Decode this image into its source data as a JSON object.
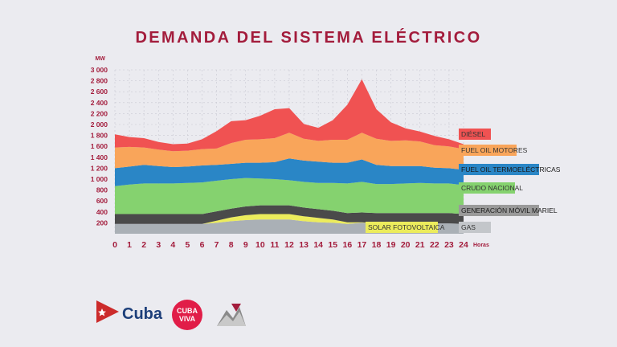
{
  "title": "DEMANDA DEL SISTEMA ELÉCTRICO",
  "colors": {
    "title": "#a31c3c",
    "axis": "#a31c3c",
    "diesel": "#f05252",
    "fuel_oil_motores": "#f9a55a",
    "fuel_oil_termo": "#2a86c6",
    "crudo_nacional": "#85d26f",
    "generacion_movil": "#4a4a4a",
    "gas": "#aab0b6",
    "solar": "#ecec5c"
  },
  "chart_data": {
    "type": "area",
    "title": "DEMANDA DEL SISTEMA ELÉCTRICO",
    "ylabel": "MW",
    "xlabel": "Horas",
    "ylim": [
      0,
      3000
    ],
    "yticks": [
      "3 000",
      "2 800",
      "2 600",
      "2 400",
      "2 200",
      "2 000",
      "1 800",
      "1 600",
      "1 400",
      "1 200",
      "1 000",
      "800",
      "600",
      "400",
      "200"
    ],
    "ytick_values": [
      3000,
      2800,
      2600,
      2400,
      2200,
      2000,
      1800,
      1600,
      1400,
      1200,
      1000,
      800,
      600,
      400,
      200
    ],
    "x": [
      0,
      1,
      2,
      3,
      4,
      5,
      6,
      7,
      8,
      9,
      10,
      11,
      12,
      13,
      14,
      15,
      16,
      17,
      18,
      19,
      20,
      21,
      22,
      23,
      24
    ],
    "xticks": [
      "0",
      "1",
      "2",
      "3",
      "4",
      "5",
      "6",
      "7",
      "8",
      "9",
      "10",
      "11",
      "12",
      "13",
      "14",
      "15",
      "16",
      "17",
      "18",
      "19",
      "20",
      "21",
      "22",
      "23",
      "24"
    ],
    "grid": true,
    "stacked": true,
    "legend_placement": "right",
    "series": [
      {
        "name": "GAS",
        "key": "gas",
        "values": [
          180,
          180,
          180,
          180,
          180,
          180,
          180,
          200,
          230,
          250,
          260,
          260,
          260,
          230,
          210,
          200,
          180,
          200,
          190,
          190,
          190,
          190,
          190,
          190,
          180
        ]
      },
      {
        "name": "SOLAR FOTOVOLTAICA",
        "key": "solar",
        "values": [
          0,
          0,
          0,
          0,
          0,
          0,
          0,
          40,
          70,
          90,
          100,
          100,
          100,
          90,
          80,
          60,
          30,
          10,
          0,
          0,
          0,
          0,
          0,
          0,
          0
        ]
      },
      {
        "name": "GENERACIÓN MÓVIL MARIEL",
        "key": "generacion_movil",
        "values": [
          180,
          180,
          180,
          180,
          180,
          180,
          180,
          170,
          160,
          160,
          160,
          160,
          160,
          160,
          160,
          160,
          170,
          180,
          190,
          190,
          190,
          190,
          190,
          190,
          180
        ]
      },
      {
        "name": "CRUDO NACIONAL",
        "key": "crudo_nacional",
        "values": [
          510,
          540,
          560,
          560,
          560,
          570,
          580,
          560,
          540,
          520,
          490,
          480,
          460,
          470,
          480,
          510,
          540,
          560,
          530,
          530,
          540,
          550,
          540,
          540,
          530
        ]
      },
      {
        "name": "FUEL OIL TERMOELÉCTRICAS",
        "key": "fuel_oil_termo",
        "values": [
          330,
          330,
          340,
          320,
          300,
          300,
          310,
          290,
          280,
          280,
          290,
          310,
          400,
          390,
          390,
          370,
          380,
          410,
          350,
          330,
          320,
          310,
          290,
          280,
          280
        ]
      },
      {
        "name": "FUEL OIL MOTORES",
        "key": "fuel_oil_motores",
        "values": [
          380,
          360,
          320,
          300,
          290,
          290,
          300,
          300,
          380,
          420,
          430,
          440,
          470,
          400,
          380,
          420,
          420,
          490,
          480,
          460,
          470,
          450,
          410,
          400,
          380
        ]
      },
      {
        "name": "DIÉSEL",
        "key": "diesel",
        "values": [
          240,
          180,
          170,
          140,
          130,
          130,
          180,
          320,
          400,
          360,
          430,
          530,
          450,
          270,
          240,
          360,
          640,
          980,
          540,
          340,
          220,
          180,
          170,
          130,
          90
        ]
      }
    ]
  },
  "legend": [
    {
      "label": "DIÉSEL",
      "key": "diesel"
    },
    {
      "label": "FUEL OIL MOTORES",
      "key": "fuel_oil_motores"
    },
    {
      "label": "FUEL OIL TERMOELÉCTRICAS",
      "key": "fuel_oil_termo"
    },
    {
      "label": "CRUDO NACIONAL",
      "key": "crudo_nacional"
    },
    {
      "label": "GENERACIÓN MÓVIL MARIEL",
      "key": "generacion_movil"
    },
    {
      "label": "SOLAR FOTOVOLTAICA",
      "key": "solar"
    },
    {
      "label": "GAS",
      "key": "gas"
    }
  ],
  "logos": {
    "cuba": "Cuba",
    "cubaviva": "CUBA VIVA"
  }
}
